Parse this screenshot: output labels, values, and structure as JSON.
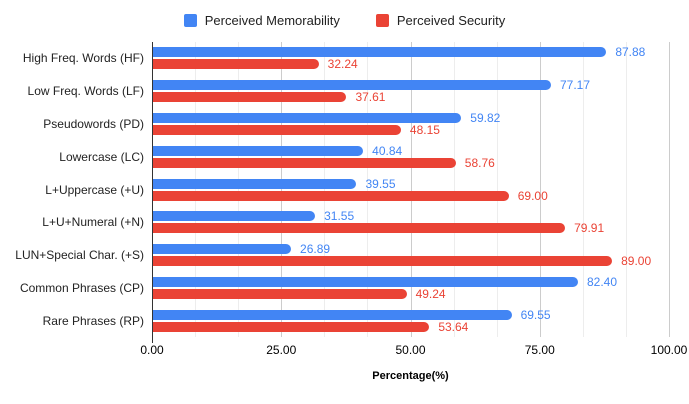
{
  "legend": {
    "items": [
      {
        "label": "Perceived Memorability",
        "color": "#4285F4"
      },
      {
        "label": "Perceived Security",
        "color": "#EA4335"
      }
    ]
  },
  "chart_data": {
    "type": "bar",
    "orientation": "horizontal",
    "title": "",
    "xlabel": "Percentage(%)",
    "ylabel": "",
    "xlim": [
      0,
      100
    ],
    "x_ticks": [
      0,
      25,
      50,
      75,
      100
    ],
    "x_tick_labels": [
      "0.00",
      "25.00",
      "50.00",
      "75.00",
      "100.00"
    ],
    "minor_divisions_per_major": 3,
    "grid": "on",
    "legend_position": "top",
    "categories": [
      "High Freq. Words (HF)",
      "Low Freq. Words (LF)",
      "Pseudowords (PD)",
      "Lowercase (LC)",
      "L+Uppercase (+U)",
      "L+U+Numeral (+N)",
      "LUN+Special Char. (+S)",
      "Common Phrases (CP)",
      "Rare Phrases (RP)"
    ],
    "series": [
      {
        "name": "Perceived Memorability",
        "color": "#4285F4",
        "values": [
          87.88,
          77.17,
          59.82,
          40.84,
          39.55,
          31.55,
          26.89,
          82.4,
          69.55
        ]
      },
      {
        "name": "Perceived Security",
        "color": "#EA4335",
        "values": [
          32.24,
          37.61,
          48.15,
          58.76,
          69.0,
          79.91,
          89.0,
          49.24,
          53.64
        ]
      }
    ],
    "value_label_decimals": 2
  }
}
